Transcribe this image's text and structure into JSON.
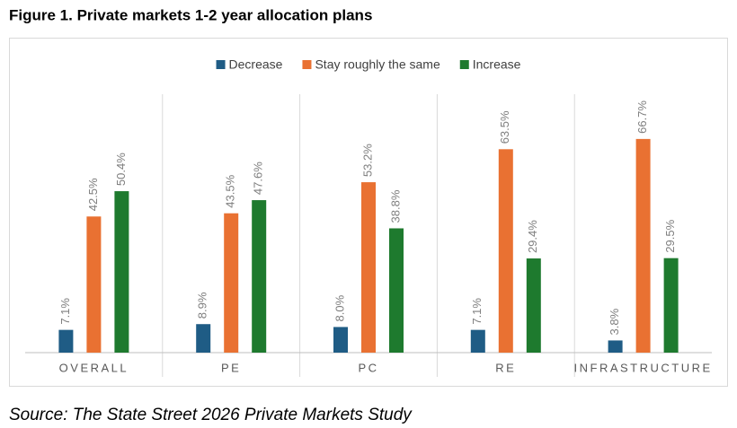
{
  "chart_data": {
    "type": "bar",
    "title": "Figure 1. Private markets 1-2 year allocation plans",
    "source": "Source: The State Street 2026 Private Markets Study",
    "categories": [
      "OVERALL",
      "PE",
      "PC",
      "RE",
      "INFRASTRUCTURE"
    ],
    "legend": "top",
    "series": [
      {
        "name": "Decrease",
        "color": "#1f5c85",
        "values": [
          7.1,
          8.9,
          8.0,
          7.1,
          3.8
        ],
        "value_labels": [
          "7.1%",
          "8.9%",
          "8.0%",
          "7.1%",
          "3.8%"
        ]
      },
      {
        "name": "Stay roughly the same",
        "color": "#e97132",
        "values": [
          42.5,
          43.5,
          53.2,
          63.5,
          66.7
        ],
        "value_labels": [
          "42.5%",
          "43.5%",
          "53.2%",
          "63.5%",
          "66.7%"
        ]
      },
      {
        "name": "Increase",
        "color": "#1e7a2e",
        "values": [
          50.4,
          47.6,
          38.8,
          29.4,
          29.5
        ],
        "value_labels": [
          "50.4%",
          "47.6%",
          "38.8%",
          "29.4%",
          "29.5%"
        ]
      }
    ]
  }
}
